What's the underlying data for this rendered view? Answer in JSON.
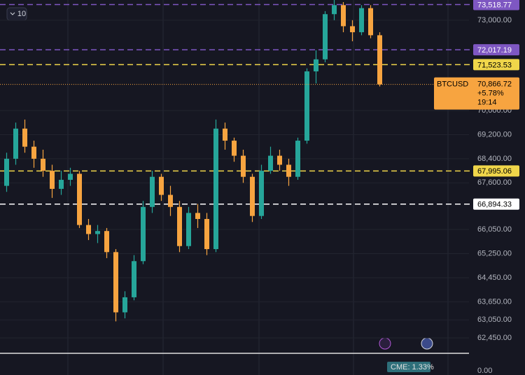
{
  "chart_data": {
    "type": "candlestick",
    "interval": "10",
    "symbol": "BTCUSD",
    "last": {
      "value": 70866.72,
      "label": "70,866.72"
    },
    "change": "+5.78%",
    "countdown": "19:14",
    "volume_axis_label": "0.00",
    "cme_label": "CME: 1.33%",
    "ylim": [
      61940,
      73670
    ],
    "yticks": [
      {
        "value": 73000,
        "label": "73,000.00"
      },
      {
        "value": 70000,
        "label": "70,000.00"
      },
      {
        "value": 69200,
        "label": "69,200.00"
      },
      {
        "value": 68400,
        "label": "68,400.00"
      },
      {
        "value": 67600,
        "label": "67,600.00"
      },
      {
        "value": 66050,
        "label": "66,050.00"
      },
      {
        "value": 65250,
        "label": "65,250.00"
      },
      {
        "value": 64450,
        "label": "64,450.00"
      },
      {
        "value": 63650,
        "label": "63,650.00"
      },
      {
        "value": 63050,
        "label": "63,050.00"
      },
      {
        "value": 62450,
        "label": "62,450.00"
      }
    ],
    "price_lines": [
      {
        "value": 73518.77,
        "label": "73,518.77",
        "color": "#7e57c2"
      },
      {
        "value": 72017.19,
        "label": "72,017.19",
        "color": "#7e57c2"
      },
      {
        "value": 71523.53,
        "label": "71,523.53",
        "color": "#f0d64a"
      },
      {
        "value": 67995.06,
        "label": "67,995.06",
        "color": "#f0d64a"
      },
      {
        "value": 66894.33,
        "label": "66,894.33",
        "color": "#ffffff"
      }
    ],
    "up_color": "#26a69a",
    "down_color": "#f7a440",
    "open": [
      67500,
      68400,
      69400,
      68800,
      68400,
      68000,
      67400,
      67700,
      67900,
      66200,
      65900,
      66000,
      65300,
      63300,
      63800,
      65000,
      66800,
      67800,
      67200,
      66800,
      65500,
      66600,
      66400,
      65400,
      69400,
      69000,
      68500,
      67800,
      66500,
      68000,
      68500,
      68200,
      67800,
      69000,
      71300,
      71700,
      73200,
      73500,
      72800,
      72600,
      73400,
      72500
    ],
    "high": [
      68600,
      69600,
      69700,
      69000,
      68700,
      68200,
      68000,
      68100,
      68000,
      66400,
      66200,
      66100,
      65400,
      64000,
      65200,
      67000,
      68000,
      67900,
      67500,
      67000,
      66800,
      66900,
      66600,
      69700,
      69600,
      69100,
      68700,
      67900,
      68200,
      68800,
      68700,
      68400,
      69100,
      71400,
      72000,
      73300,
      73700,
      73600,
      73000,
      73500,
      73500,
      72600
    ],
    "low": [
      67300,
      68200,
      68600,
      68100,
      67800,
      67100,
      67200,
      67500,
      66100,
      65700,
      65600,
      65100,
      63000,
      63100,
      63700,
      64900,
      66600,
      67000,
      66500,
      65300,
      65400,
      66100,
      65200,
      65300,
      68700,
      68300,
      67600,
      66300,
      66400,
      67900,
      68000,
      67500,
      67700,
      68900,
      70900,
      71600,
      73000,
      72600,
      72300,
      72500,
      72400,
      70800
    ],
    "close": [
      68400,
      69400,
      68800,
      68400,
      68000,
      67400,
      67700,
      67900,
      66200,
      65900,
      66000,
      65300,
      63300,
      63800,
      65000,
      66800,
      67800,
      67200,
      66800,
      65500,
      66600,
      66400,
      65400,
      69400,
      69000,
      68500,
      67800,
      66500,
      68000,
      68500,
      68200,
      67800,
      69000,
      71300,
      71700,
      73200,
      73500,
      72800,
      72600,
      73400,
      72500,
      70866.72
    ]
  }
}
